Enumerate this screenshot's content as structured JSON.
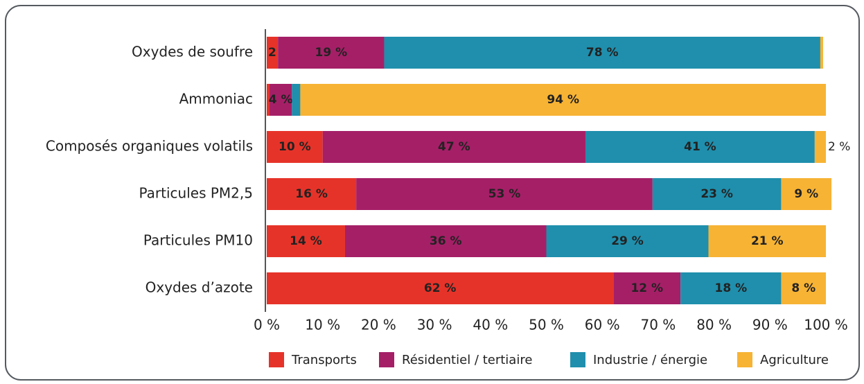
{
  "chart_data": {
    "type": "stacked-barh",
    "categories": [
      "Oxydes de soufre",
      "Ammoniac",
      "Composés organiques volatils",
      "Particules PM2,5",
      "Particules PM10",
      "Oxydes d’azote"
    ],
    "series": [
      {
        "name": "Transports",
        "color": "#e63329",
        "values": [
          2,
          0.5,
          10,
          16,
          14,
          62
        ],
        "value_labels": [
          "2 %",
          null,
          "10 %",
          "16 %",
          "14 %",
          "62 %"
        ]
      },
      {
        "name": "Résidentiel / tertiaire",
        "color": "#a51f67",
        "values": [
          19,
          4,
          47,
          53,
          36,
          12
        ],
        "value_labels": [
          "19 %",
          "4 %",
          "47 %",
          "53 %",
          "36 %",
          "12 %"
        ]
      },
      {
        "name": "Industrie / énergie",
        "color": "#1f8fad",
        "values": [
          78,
          1.5,
          41,
          23,
          29,
          18
        ],
        "value_labels": [
          "78 %",
          null,
          "41 %",
          "23 %",
          "29 %",
          "18 %"
        ]
      },
      {
        "name": "Agriculture",
        "color": "#f7b334",
        "values": [
          0.5,
          94,
          2,
          9,
          21,
          8
        ],
        "value_labels": [
          null,
          "94 %",
          "2 %",
          "9 %",
          "21 %",
          "8 %"
        ]
      }
    ],
    "xlim": [
      0,
      100
    ],
    "xticks": [
      {
        "value": 0,
        "label": "0 %"
      },
      {
        "value": 10,
        "label": "10 %"
      },
      {
        "value": 20,
        "label": "20 %"
      },
      {
        "value": 30,
        "label": "30 %"
      },
      {
        "value": 40,
        "label": "40 %"
      },
      {
        "value": 50,
        "label": "50 %"
      },
      {
        "value": 60,
        "label": "60 %"
      },
      {
        "value": 70,
        "label": "70 %"
      },
      {
        "value": 80,
        "label": "80 %"
      },
      {
        "value": 90,
        "label": "90 %"
      },
      {
        "value": 100,
        "label": "100 %"
      }
    ],
    "legend": "bottom"
  }
}
